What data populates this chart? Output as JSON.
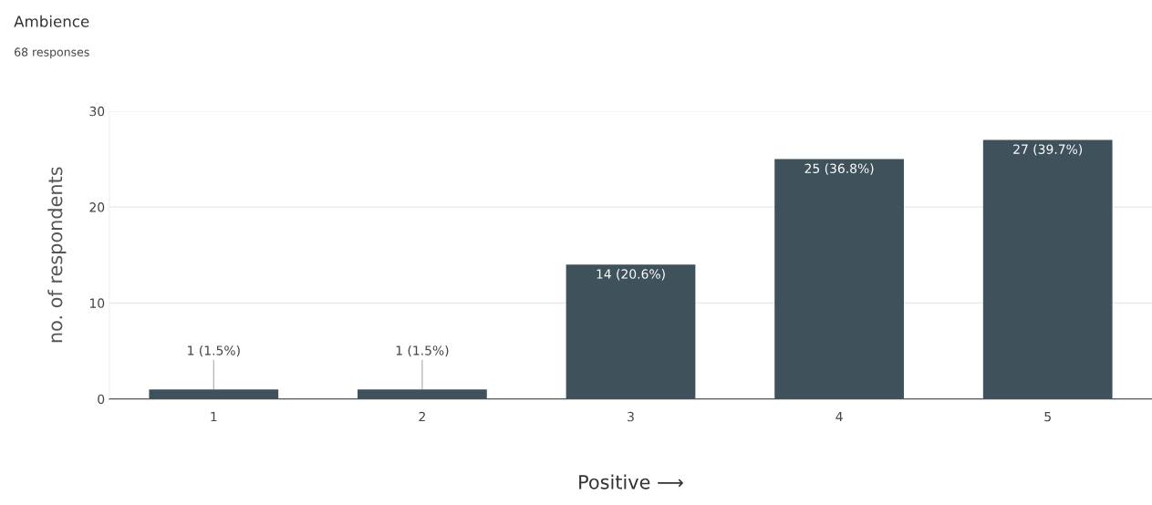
{
  "chart_data": {
    "type": "bar",
    "title": "Ambience",
    "subtitle": "68 responses",
    "xlabel": "Positive ⟶",
    "ylabel": "no. of respondents",
    "categories": [
      "1",
      "2",
      "3",
      "4",
      "5"
    ],
    "values": [
      1,
      1,
      14,
      25,
      27
    ],
    "value_labels": [
      "1 (1.5%)",
      "1 (1.5%)",
      "14 (20.6%)",
      "25 (36.8%)",
      "27 (39.7%)"
    ],
    "color": "#3f525b",
    "ylim": [
      0,
      30
    ],
    "yticks": [
      0,
      10,
      20,
      30
    ],
    "grid": "y",
    "legend": false
  }
}
